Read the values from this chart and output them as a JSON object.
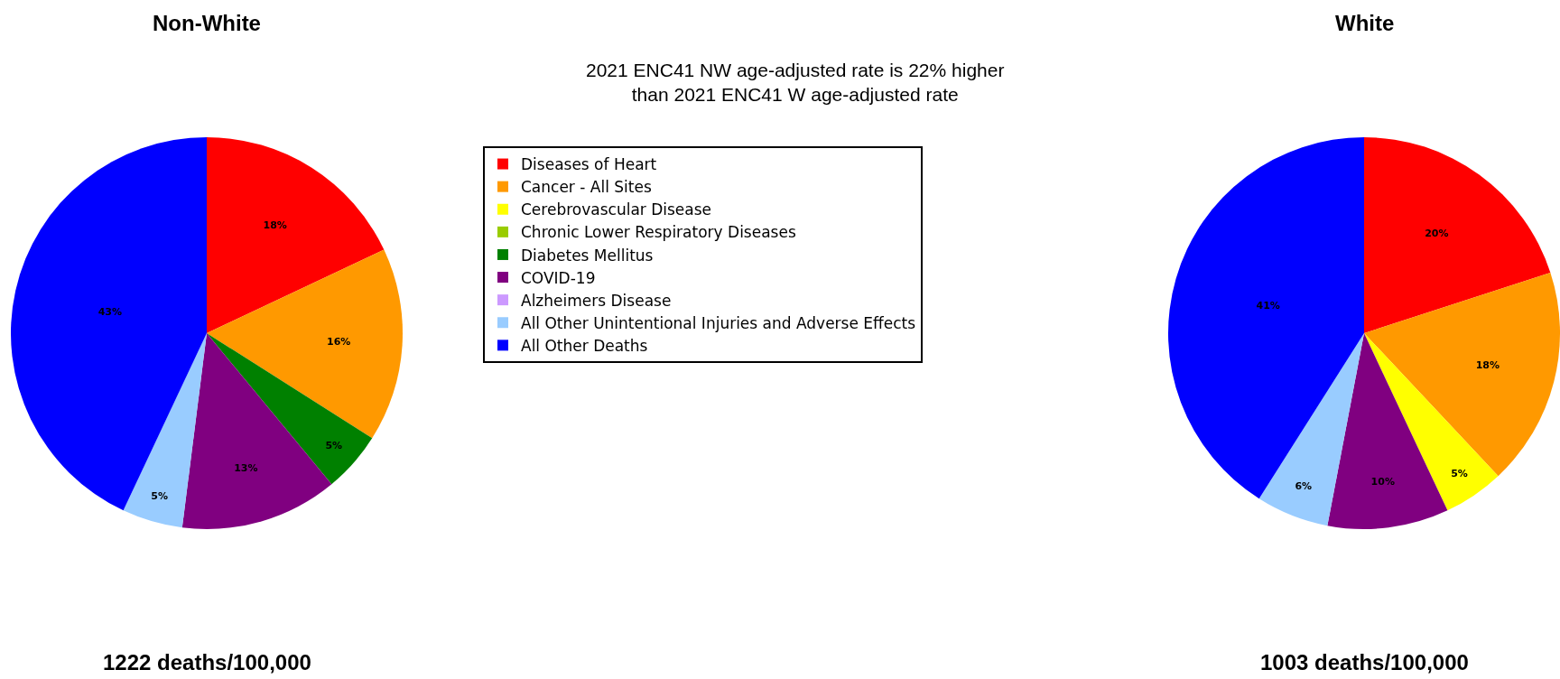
{
  "chart_data": {
    "type": "pie",
    "annotations": [
      "2021 ENC41 NW age-adjusted rate is 22% higher\nthan 2021 ENC41 W age-adjusted rate",
      "1222 deaths/100,000",
      "1003 deaths/100,000"
    ],
    "categories": [
      "Diseases of Heart",
      "Cancer - All Sites",
      "Cerebrovascular Disease",
      "Chronic Lower Respiratory Diseases",
      "Diabetes Mellitus",
      "COVID-19",
      "Alzheimers Disease",
      "All Other Unintentional Injuries and Adverse Effects",
      "All Other Deaths"
    ],
    "colors": [
      "#ff0000",
      "#ff9900",
      "#ffff00",
      "#99cc00",
      "#008000",
      "#800080",
      "#cc99ff",
      "#99ccff",
      "#0000ff"
    ],
    "series": [
      {
        "name": "Non-White",
        "values": [
          18,
          16,
          null,
          null,
          5,
          13,
          null,
          5,
          43
        ],
        "value_labels": [
          "18%",
          "16%",
          null,
          null,
          "5%",
          "13%",
          null,
          "5%",
          "43%"
        ]
      },
      {
        "name": "White",
        "values": [
          20,
          18,
          5,
          null,
          null,
          10,
          null,
          6,
          41
        ],
        "value_labels": [
          "20%",
          "18%",
          "5%",
          null,
          null,
          "10%",
          null,
          "6%",
          "41%"
        ]
      }
    ],
    "legend": "top"
  }
}
